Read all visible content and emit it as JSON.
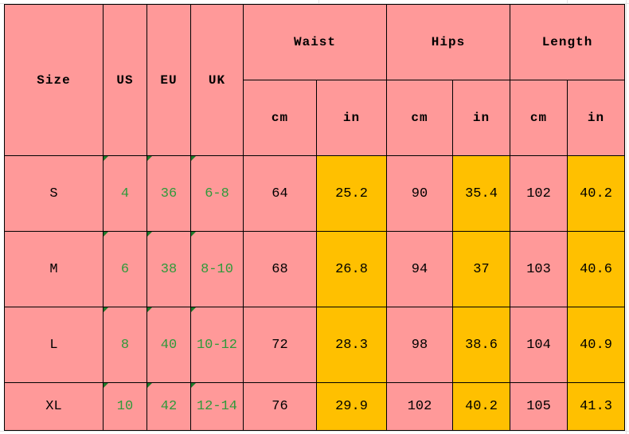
{
  "table": {
    "headers": [
      "Size",
      "US",
      "EU",
      "UK",
      "Waist",
      "Hips",
      "Length"
    ],
    "units": [
      "cm",
      "in",
      "cm",
      "in",
      "cm",
      "in"
    ],
    "rows": [
      [
        "S",
        "4",
        "36",
        "6-8",
        "64",
        "25.2",
        "90",
        "35.4",
        "102",
        "40.2"
      ],
      [
        "M",
        "6",
        "38",
        "8-10",
        "68",
        "26.8",
        "94",
        "37",
        "103",
        "40.6"
      ],
      [
        "L",
        "8",
        "40",
        "10-12",
        "72",
        "28.3",
        "98",
        "38.6",
        "104",
        "40.9"
      ],
      [
        "XL",
        "10",
        "42",
        "12-14",
        "76",
        "29.9",
        "102",
        "40.2",
        "105",
        "41.3"
      ]
    ]
  }
}
